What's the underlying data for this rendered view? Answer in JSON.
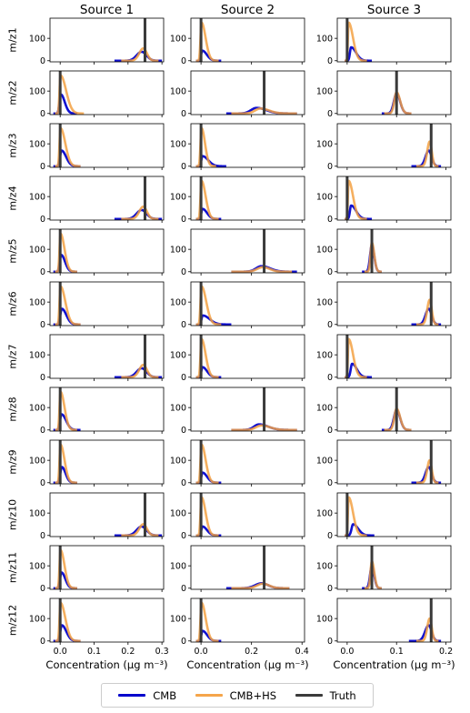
{
  "chart_data": {
    "type": "line",
    "columns": [
      {
        "title": "Source 1",
        "xlim": [
          -0.03,
          0.305
        ],
        "xticks": [
          0.0,
          0.1,
          0.2,
          0.3
        ],
        "xtick_labels": [
          "0.0",
          "0.1",
          "0.2",
          "0.3"
        ]
      },
      {
        "title": "Source 2",
        "xlim": [
          -0.04,
          0.41
        ],
        "xticks": [
          0.0,
          0.2,
          0.4
        ],
        "xtick_labels": [
          "0.0",
          "0.2",
          "0.4"
        ]
      },
      {
        "title": "Source 3",
        "xlim": [
          -0.02,
          0.21
        ],
        "xticks": [
          0.0,
          0.1,
          0.2
        ],
        "xtick_labels": [
          "0.0",
          "0.1",
          "0.2"
        ]
      }
    ],
    "rows": [
      "m/z1",
      "m/z2",
      "m/z3",
      "m/z4",
      "m/z5",
      "m/z6",
      "m/z7",
      "m/z8",
      "m/z9",
      "m/z10",
      "m/z11",
      "m/z12"
    ],
    "ylim": [
      -5,
      190
    ],
    "yticks": [
      0,
      100
    ],
    "ytick_labels": [
      "0",
      "100"
    ],
    "xlabel": "Concentration (µg m⁻³)",
    "panels": [
      [
        {
          "truth": 0.25,
          "cmb": [
            0.24,
            40,
            0.16,
            0.3
          ],
          "hs": [
            0.245,
            55,
            0.18,
            0.29
          ]
        },
        {
          "truth": 0.0,
          "cmb": [
            0.002,
            85,
            -0.02,
            0.05
          ],
          "hs": [
            0.001,
            170,
            -0.015,
            0.07
          ]
        },
        {
          "truth": 0.0,
          "cmb": [
            0.004,
            70,
            -0.02,
            0.06
          ],
          "hs": [
            0.001,
            170,
            -0.015,
            0.06
          ]
        },
        {
          "truth": 0.25,
          "cmb": [
            0.24,
            40,
            0.16,
            0.3
          ],
          "hs": [
            0.245,
            55,
            0.18,
            0.29
          ]
        },
        {
          "truth": 0.0,
          "cmb": [
            0.003,
            75,
            -0.02,
            0.05
          ],
          "hs": [
            0.001,
            170,
            -0.015,
            0.05
          ]
        },
        {
          "truth": 0.0,
          "cmb": [
            0.005,
            70,
            -0.02,
            0.06
          ],
          "hs": [
            0.001,
            170,
            -0.015,
            0.06
          ]
        },
        {
          "truth": 0.25,
          "cmb": [
            0.24,
            40,
            0.16,
            0.3
          ],
          "hs": [
            0.245,
            55,
            0.18,
            0.29
          ]
        },
        {
          "truth": 0.0,
          "cmb": [
            0.004,
            70,
            -0.02,
            0.06
          ],
          "hs": [
            0.001,
            170,
            -0.015,
            0.05
          ]
        },
        {
          "truth": 0.0,
          "cmb": [
            0.005,
            70,
            -0.02,
            0.05
          ],
          "hs": [
            0.001,
            170,
            -0.015,
            0.05
          ]
        },
        {
          "truth": 0.25,
          "cmb": [
            0.24,
            40,
            0.16,
            0.3
          ],
          "hs": [
            0.245,
            50,
            0.18,
            0.29
          ]
        },
        {
          "truth": 0.0,
          "cmb": [
            0.004,
            70,
            -0.02,
            0.05
          ],
          "hs": [
            0.001,
            170,
            -0.015,
            0.05
          ]
        },
        {
          "truth": 0.0,
          "cmb": [
            0.005,
            70,
            -0.02,
            0.06
          ],
          "hs": [
            0.001,
            170,
            -0.015,
            0.06
          ]
        }
      ],
      [
        {
          "truth": 0.0,
          "cmb": [
            0.005,
            45,
            -0.02,
            0.08
          ],
          "hs": [
            0.002,
            170,
            -0.02,
            0.07
          ]
        },
        {
          "truth": 0.25,
          "cmb": [
            0.22,
            25,
            0.1,
            0.38
          ],
          "hs": [
            0.235,
            22,
            0.12,
            0.38
          ]
        },
        {
          "truth": 0.0,
          "cmb": [
            0.006,
            45,
            -0.02,
            0.1
          ],
          "hs": [
            0.002,
            170,
            -0.02,
            0.06
          ]
        },
        {
          "truth": 0.0,
          "cmb": [
            0.006,
            45,
            -0.02,
            0.08
          ],
          "hs": [
            0.002,
            170,
            -0.02,
            0.07
          ]
        },
        {
          "truth": 0.25,
          "cmb": [
            0.24,
            25,
            0.12,
            0.38
          ],
          "hs": [
            0.245,
            20,
            0.12,
            0.36
          ]
        },
        {
          "truth": 0.0,
          "cmb": [
            0.007,
            40,
            -0.02,
            0.12
          ],
          "hs": [
            0.002,
            170,
            -0.02,
            0.08
          ]
        },
        {
          "truth": 0.0,
          "cmb": [
            0.006,
            45,
            -0.02,
            0.08
          ],
          "hs": [
            0.002,
            170,
            -0.02,
            0.07
          ]
        },
        {
          "truth": 0.25,
          "cmb": [
            0.23,
            25,
            0.12,
            0.38
          ],
          "hs": [
            0.24,
            20,
            0.12,
            0.38
          ]
        },
        {
          "truth": 0.0,
          "cmb": [
            0.006,
            45,
            -0.02,
            0.08
          ],
          "hs": [
            0.002,
            170,
            -0.02,
            0.07
          ]
        },
        {
          "truth": 0.0,
          "cmb": [
            0.006,
            40,
            -0.02,
            0.08
          ],
          "hs": [
            0.002,
            170,
            -0.02,
            0.07
          ]
        },
        {
          "truth": 0.25,
          "cmb": [
            0.24,
            22,
            0.1,
            0.35
          ],
          "hs": [
            0.245,
            20,
            0.12,
            0.35
          ]
        },
        {
          "truth": 0.0,
          "cmb": [
            0.006,
            45,
            -0.02,
            0.08
          ],
          "hs": [
            0.002,
            170,
            -0.02,
            0.07
          ]
        }
      ],
      [
        {
          "truth": 0.0,
          "cmb": [
            0.008,
            60,
            -0.005,
            0.05
          ],
          "hs": [
            0.003,
            170,
            -0.005,
            0.04
          ]
        },
        {
          "truth": 0.1,
          "cmb": [
            0.1,
            90,
            0.07,
            0.13
          ],
          "hs": [
            0.1,
            95,
            0.075,
            0.13
          ]
        },
        {
          "truth": 0.17,
          "cmb": [
            0.165,
            70,
            0.13,
            0.19
          ],
          "hs": [
            0.167,
            110,
            0.14,
            0.185
          ]
        },
        {
          "truth": 0.0,
          "cmb": [
            0.008,
            60,
            -0.005,
            0.05
          ],
          "hs": [
            0.003,
            170,
            -0.005,
            0.04
          ]
        },
        {
          "truth": 0.05,
          "cmb": [
            0.05,
            120,
            0.03,
            0.07
          ],
          "hs": [
            0.05,
            130,
            0.035,
            0.07
          ]
        },
        {
          "truth": 0.17,
          "cmb": [
            0.165,
            70,
            0.13,
            0.19
          ],
          "hs": [
            0.167,
            110,
            0.14,
            0.185
          ]
        },
        {
          "truth": 0.0,
          "cmb": [
            0.01,
            60,
            -0.005,
            0.05
          ],
          "hs": [
            0.003,
            170,
            -0.005,
            0.04
          ]
        },
        {
          "truth": 0.1,
          "cmb": [
            0.1,
            90,
            0.07,
            0.13
          ],
          "hs": [
            0.1,
            95,
            0.075,
            0.13
          ]
        },
        {
          "truth": 0.17,
          "cmb": [
            0.165,
            70,
            0.13,
            0.19
          ],
          "hs": [
            0.167,
            100,
            0.14,
            0.185
          ]
        },
        {
          "truth": 0.0,
          "cmb": [
            0.012,
            50,
            -0.005,
            0.055
          ],
          "hs": [
            0.003,
            170,
            -0.005,
            0.04
          ]
        },
        {
          "truth": 0.05,
          "cmb": [
            0.05,
            100,
            0.03,
            0.07
          ],
          "hs": [
            0.05,
            120,
            0.035,
            0.07
          ]
        },
        {
          "truth": 0.17,
          "cmb": [
            0.165,
            70,
            0.125,
            0.19
          ],
          "hs": [
            0.167,
            100,
            0.14,
            0.185
          ]
        }
      ]
    ],
    "legend": {
      "position": "bottom-center",
      "entries": [
        {
          "label": "CMB",
          "color": "#0000cc"
        },
        {
          "label": "CMB+HS",
          "color": "#f5a54a"
        },
        {
          "label": "Truth",
          "color": "#3a3a3a"
        }
      ]
    },
    "colors": {
      "cmb": "#1010d0",
      "hs": "#f3a143",
      "overlap": "#b05a5a",
      "truth": "#3a3a3a"
    }
  }
}
